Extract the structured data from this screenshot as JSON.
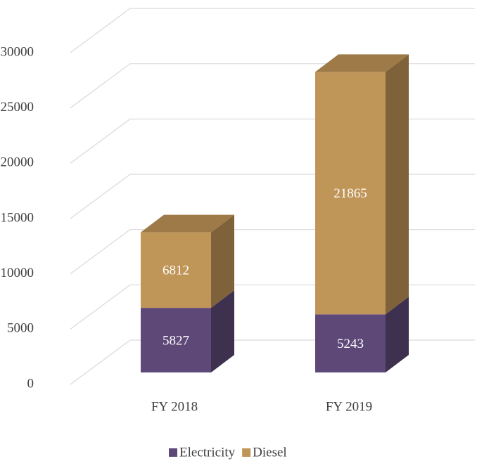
{
  "chart_data": {
    "type": "bar3d_stacked",
    "categories": [
      "FY 2018",
      "FY 2019"
    ],
    "series": [
      {
        "name": "Electricity",
        "color": "#5e4878",
        "values": [
          5827,
          5243
        ]
      },
      {
        "name": "Diesel",
        "color": "#c09558",
        "values": [
          6812,
          21865
        ]
      }
    ],
    "ylim": [
      0,
      30000
    ],
    "yticks": [
      0,
      5000,
      10000,
      15000,
      20000,
      25000,
      30000
    ],
    "grid": true,
    "legend": "bottom"
  }
}
